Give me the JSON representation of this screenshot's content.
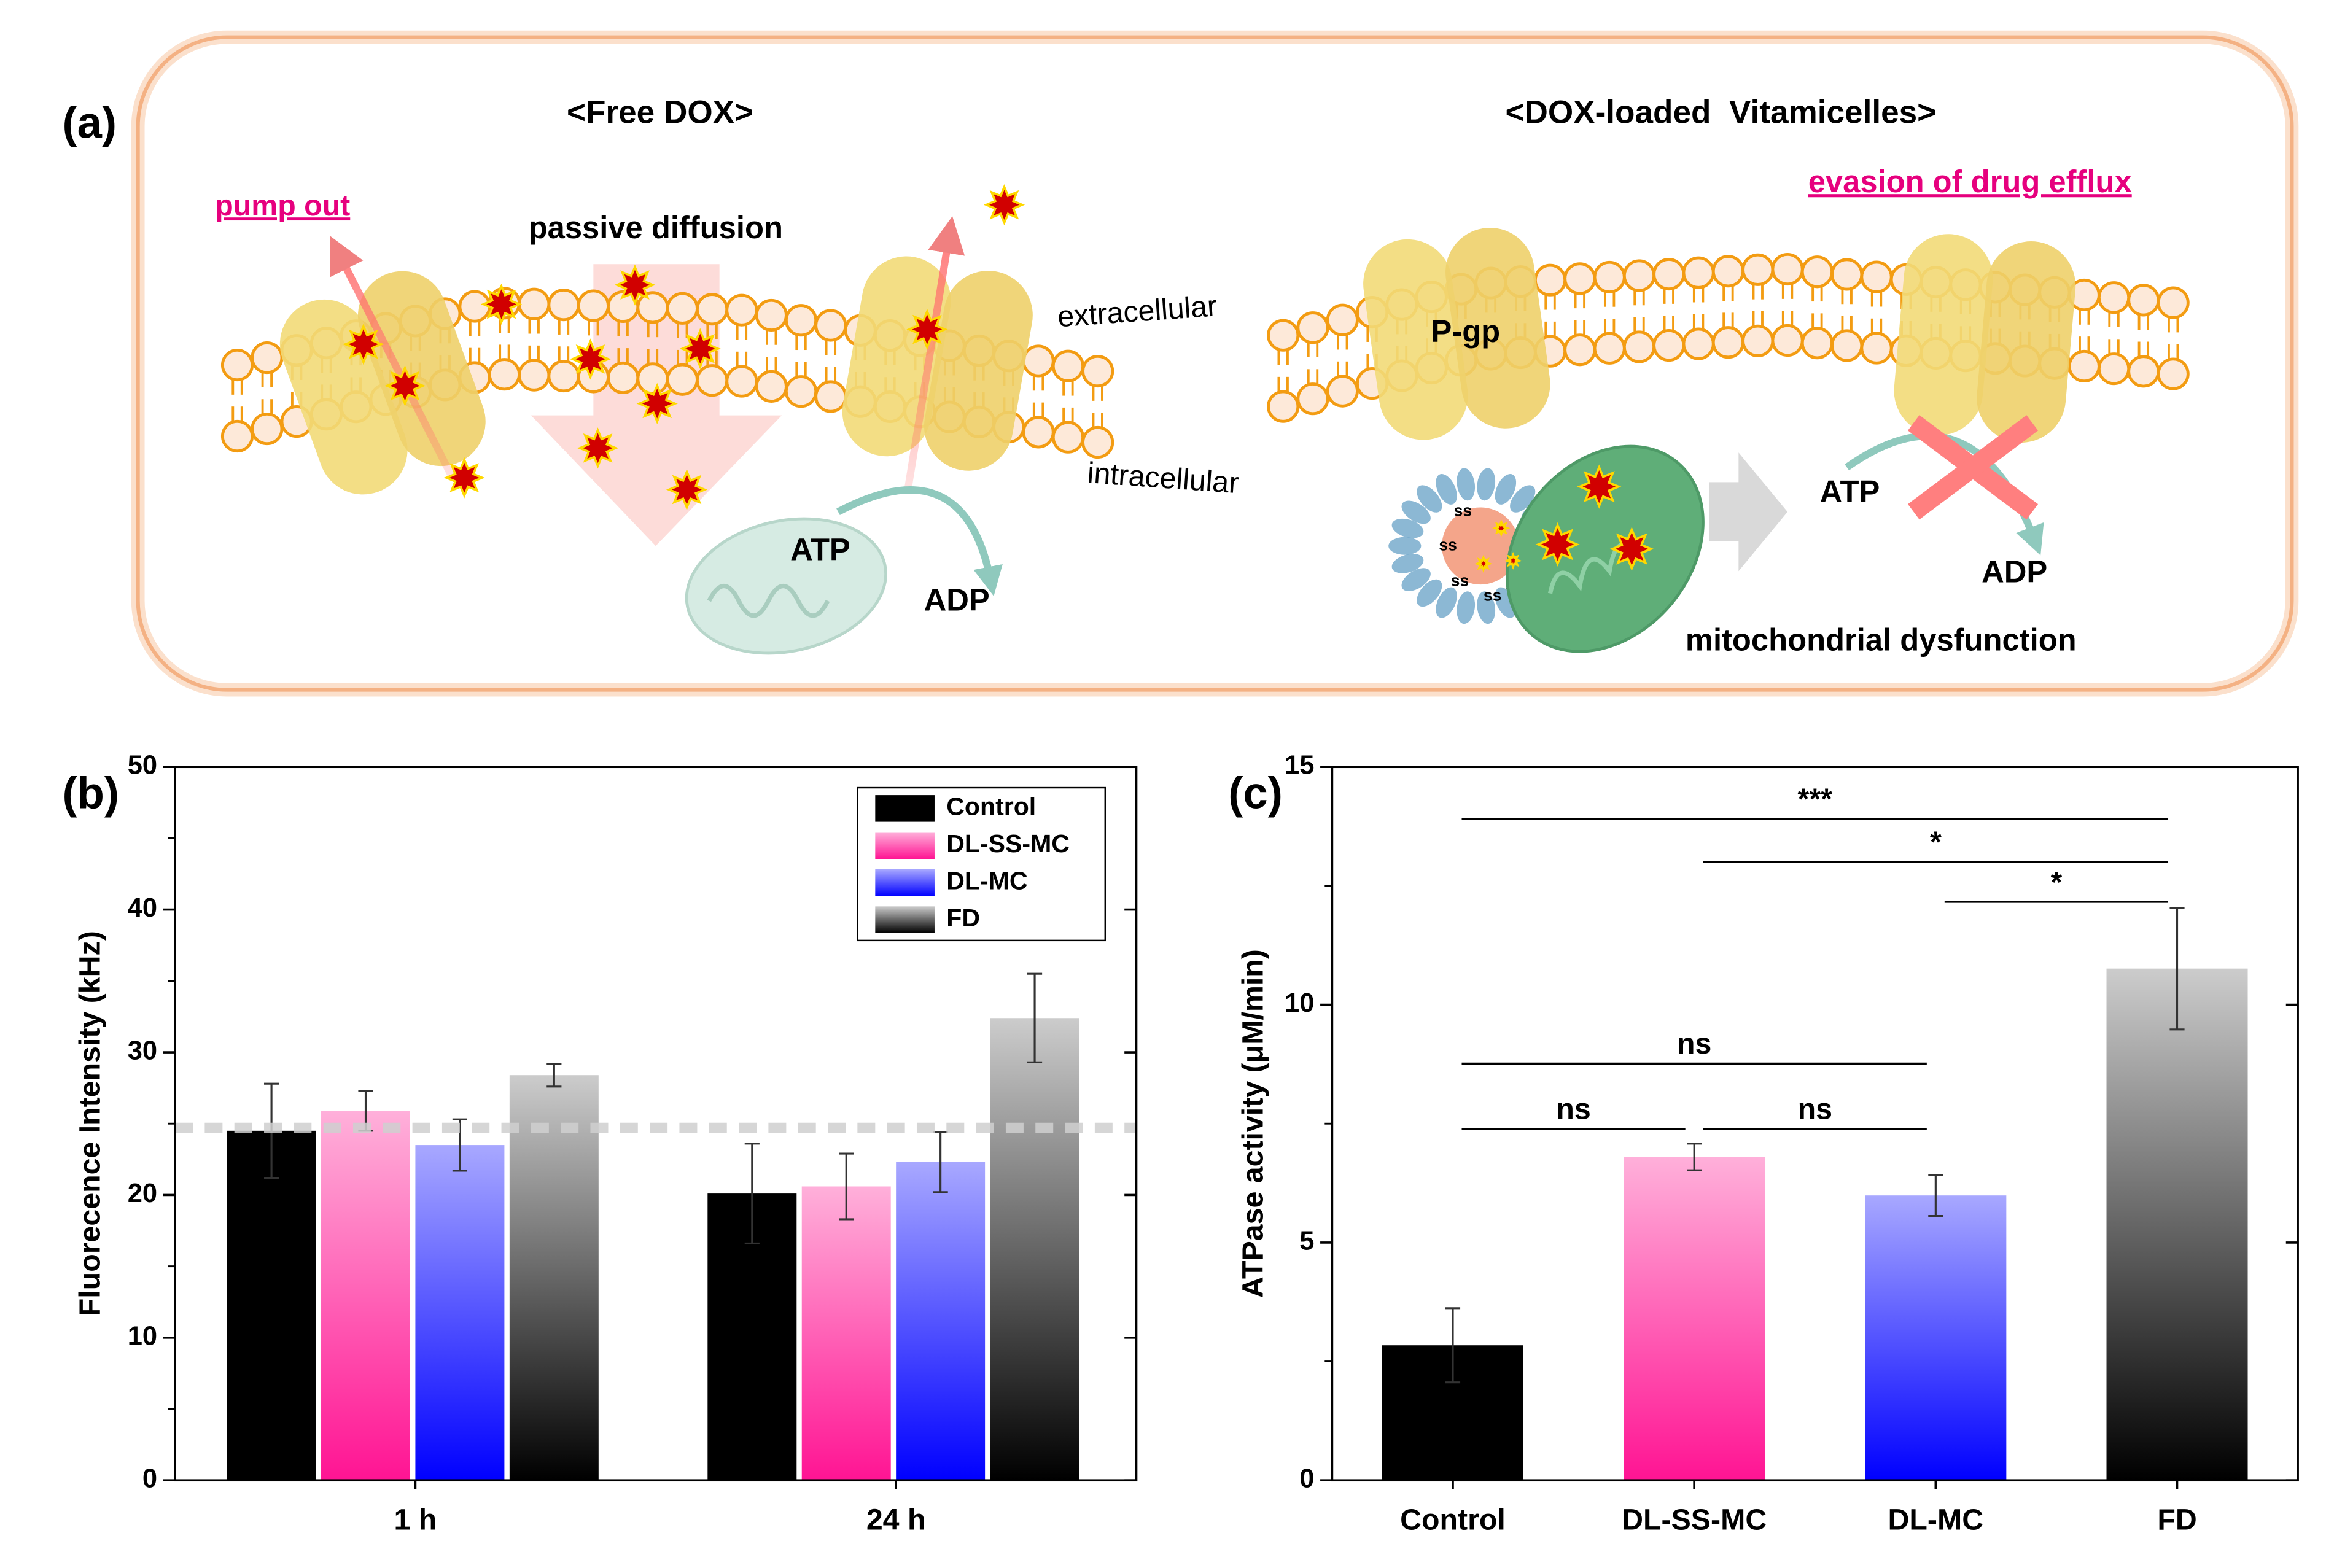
{
  "panel_labels": [
    "(a)",
    "(b)",
    "(c)"
  ],
  "diagram": {
    "left_title": "<Free DOX>",
    "right_title": "<DOX-loaded  Vitamicelles>",
    "pump_out": "pump out",
    "passive_diffusion": "passive diffusion",
    "extracellular": "extracellular",
    "intracellular": "intracellular",
    "left_atp": "ATP",
    "left_adp": "ADP",
    "pgp": "P-gp",
    "evasion": "evasion of drug efflux",
    "right_atp": "ATP",
    "right_adp": "ADP",
    "mito": "mitochondrial dysfunction",
    "micelle_label": "ss"
  },
  "chart_data": [
    {
      "type": "bar",
      "ylabel": "Fluorecence Intensity (kHz)",
      "categories": [
        "1 h",
        "24 h"
      ],
      "ylim": [
        0,
        50
      ],
      "yticks": [
        0,
        10,
        20,
        30,
        40,
        50
      ],
      "legend": "upper right",
      "reference_line": 24.7,
      "series": [
        {
          "name": "Control",
          "color": "#000000",
          "color_top": "#000000",
          "values": [
            24.5,
            20.1
          ],
          "errors": [
            3.3,
            3.5
          ]
        },
        {
          "name": "DL-SS-MC",
          "color": "#ff1493",
          "color_top": "#ffb0da",
          "values": [
            25.9,
            20.6
          ],
          "errors": [
            1.4,
            2.3
          ]
        },
        {
          "name": "DL-MC",
          "color": "#0000ff",
          "color_top": "#a8a8ff",
          "values": [
            23.5,
            22.3
          ],
          "errors": [
            1.8,
            2.1
          ]
        },
        {
          "name": "FD",
          "color": "#000000",
          "color_top": "#cccccc",
          "values": [
            28.4,
            32.4
          ],
          "errors": [
            0.8,
            3.1
          ]
        }
      ]
    },
    {
      "type": "bar",
      "ylabel": "ATPase activity (μM/min)",
      "categories": [
        "Control",
        "DL-SS-MC",
        "DL-MC",
        "FD"
      ],
      "values": [
        2.84,
        6.8,
        5.99,
        10.76
      ],
      "errors": [
        0.78,
        0.28,
        0.43,
        1.28
      ],
      "colors": [
        "#000000",
        "#ff1493",
        "#0000ff",
        "#000000"
      ],
      "colors_top": [
        "#000000",
        "#ffb0da",
        "#a8a8ff",
        "#cccccc"
      ],
      "ylim": [
        0,
        15
      ],
      "yticks": [
        0,
        5,
        10,
        15
      ],
      "significance": [
        {
          "from": 0,
          "to": 3,
          "label": "***"
        },
        {
          "from": 1,
          "to": 3,
          "label": "*"
        },
        {
          "from": 2,
          "to": 3,
          "label": "*"
        },
        {
          "from": 0,
          "to": 2,
          "label": "ns"
        },
        {
          "from": 0,
          "to": 1,
          "label": "ns"
        },
        {
          "from": 1,
          "to": 2,
          "label": "ns"
        }
      ]
    }
  ]
}
